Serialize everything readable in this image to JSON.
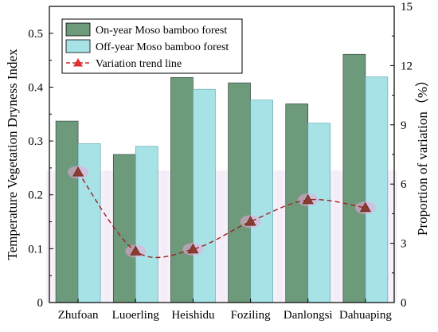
{
  "chart_data": {
    "type": "bar",
    "categories": [
      "Zhufoan",
      "Luoerling",
      "Heishidu",
      "Foziling",
      "Danlongsi",
      "Dahuaping"
    ],
    "series": [
      {
        "name": "On-year Moso bamboo forest",
        "axis": "left",
        "color": "#6e9a7c",
        "values": [
          0.337,
          0.275,
          0.418,
          0.408,
          0.369,
          0.461
        ]
      },
      {
        "name": "Off-year Moso bamboo forest",
        "axis": "left",
        "color": "#a6e2e6",
        "values": [
          0.295,
          0.29,
          0.396,
          0.376,
          0.333,
          0.419
        ]
      },
      {
        "name": "Variation trend line",
        "type": "line",
        "axis": "right",
        "color": "#e03030",
        "marker_color": "#8b3a2e",
        "values": [
          6.6,
          2.6,
          2.7,
          4.1,
          5.2,
          4.8
        ]
      }
    ],
    "ylabel": "Temperature Vegetation Dryness Index",
    "ylim": [
      0,
      0.55
    ],
    "y_ticks": [
      "0",
      "0.1",
      "0.2",
      "0.3",
      "0.4",
      "0.5"
    ],
    "y2label": "Proportion of variation（%）",
    "y2lim": [
      0,
      15
    ],
    "y2_ticks": [
      "0",
      "3",
      "6",
      "9",
      "12",
      "15"
    ],
    "legend_position": "top-left",
    "grid": false
  }
}
